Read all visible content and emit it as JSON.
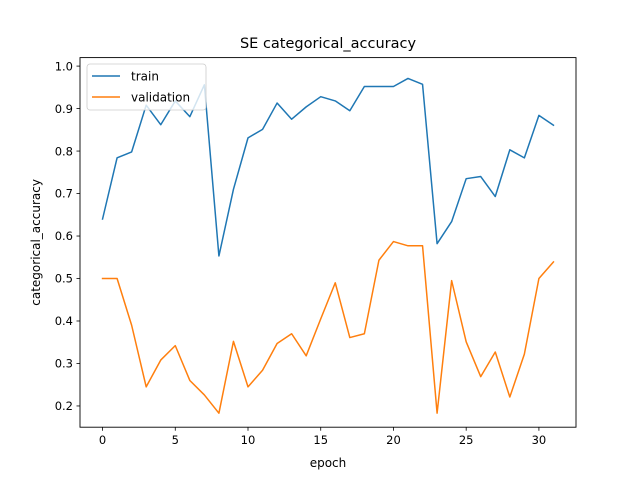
{
  "chart_data": {
    "type": "line",
    "title": "SE categorical_accuracy",
    "xlabel": "epoch",
    "ylabel": "categorical_accuracy",
    "xlim": [
      -1.55,
      32.55
    ],
    "ylim": [
      0.15,
      1.02
    ],
    "xticks": [
      0,
      5,
      10,
      15,
      20,
      25,
      30
    ],
    "yticks": [
      0.2,
      0.3,
      0.4,
      0.5,
      0.6,
      0.7,
      0.8,
      0.9,
      1.0
    ],
    "ytick_labels": [
      "0.2",
      "0.3",
      "0.4",
      "0.5",
      "0.6",
      "0.7",
      "0.8",
      "0.9",
      "1.0"
    ],
    "grid": false,
    "legend_position": "top-left",
    "x": [
      0,
      1,
      2,
      3,
      4,
      5,
      6,
      7,
      8,
      9,
      10,
      11,
      12,
      13,
      14,
      15,
      16,
      17,
      18,
      19,
      20,
      21,
      22,
      23,
      24,
      25,
      26,
      27,
      28,
      29,
      30,
      31
    ],
    "series": [
      {
        "name": "train",
        "color": "#1f77b4",
        "values": [
          0.64,
          0.784,
          0.798,
          0.908,
          0.862,
          0.918,
          0.881,
          0.956,
          0.553,
          0.71,
          0.831,
          0.851,
          0.913,
          0.875,
          0.904,
          0.928,
          0.918,
          0.895,
          0.952,
          0.952,
          0.952,
          0.971,
          0.957,
          0.582,
          0.634,
          0.735,
          0.74,
          0.693,
          0.803,
          0.784,
          0.884,
          0.861
        ]
      },
      {
        "name": "validation",
        "color": "#ff7f0e",
        "values": [
          0.5,
          0.5,
          0.39,
          0.245,
          0.308,
          0.342,
          0.26,
          0.226,
          0.183,
          0.352,
          0.245,
          0.284,
          0.347,
          0.37,
          0.318,
          0.405,
          0.49,
          0.361,
          0.37,
          0.543,
          0.587,
          0.577,
          0.577,
          0.183,
          0.495,
          0.351,
          0.269,
          0.327,
          0.221,
          0.322,
          0.5,
          0.539
        ]
      }
    ]
  }
}
